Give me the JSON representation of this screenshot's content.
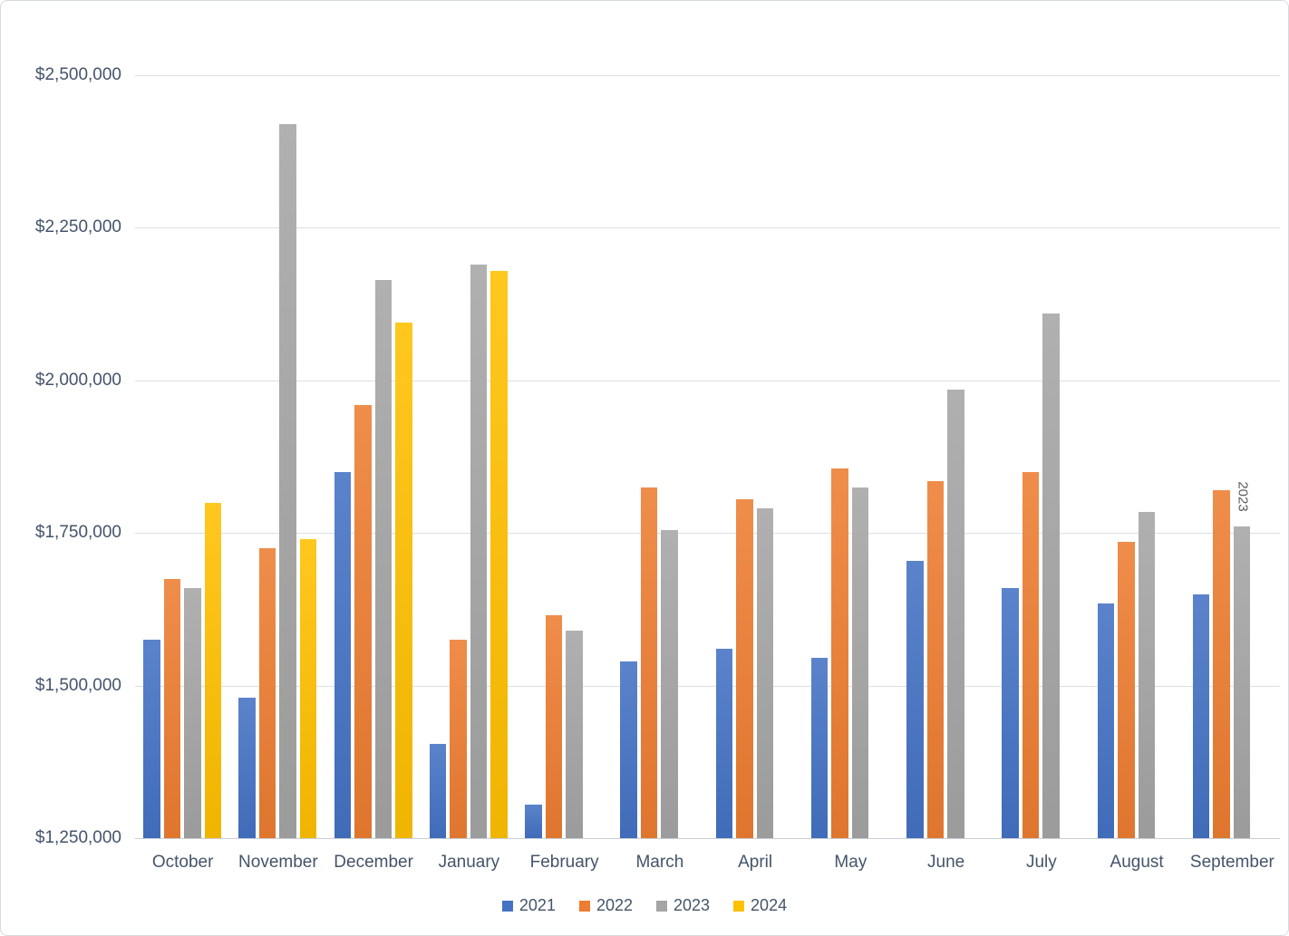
{
  "frame": {
    "background": "#FFFFFF",
    "border_color": "#D6DAE0"
  },
  "axis": {
    "text_color": "#44546A",
    "gridline_color": "#DCDFE3",
    "y_ticks": [
      "$2,500,000",
      "$2,250,000",
      "$2,000,000",
      "$1,750,000",
      "$1,500,000",
      "$1,250,000"
    ],
    "x_labels": [
      "October",
      "November",
      "December",
      "January",
      "February",
      "March",
      "April",
      "May",
      "June",
      "July",
      "August",
      "September"
    ]
  },
  "legend": {
    "items": [
      {
        "label": "2021",
        "color": "#4472C4"
      },
      {
        "label": "2022",
        "color": "#ED7D31"
      },
      {
        "label": "2023",
        "color": "#A5A5A5"
      },
      {
        "label": "2024",
        "color": "#FFC000"
      }
    ],
    "position": "bottom"
  },
  "annotation": {
    "text": "2023",
    "attached_to": "September 2023 bar",
    "rotation_deg": 90
  },
  "chart_data": {
    "type": "bar",
    "title": "",
    "xlabel": "",
    "ylabel": "",
    "categories": [
      "October",
      "November",
      "December",
      "January",
      "February",
      "March",
      "April",
      "May",
      "June",
      "July",
      "August",
      "September"
    ],
    "series": [
      {
        "name": "2021",
        "color": "#4472C4",
        "values": [
          1575000,
          1480000,
          1850000,
          1405000,
          1305000,
          1540000,
          1560000,
          1545000,
          1705000,
          1660000,
          1635000,
          1650000
        ]
      },
      {
        "name": "2022",
        "color": "#ED7D31",
        "values": [
          1675000,
          1725000,
          1960000,
          1575000,
          1615000,
          1825000,
          1805000,
          1855000,
          1835000,
          1850000,
          1735000,
          1820000
        ]
      },
      {
        "name": "2023",
        "color": "#A5A5A5",
        "values": [
          1660000,
          2420000,
          2165000,
          2190000,
          1590000,
          1755000,
          1790000,
          1825000,
          1985000,
          2110000,
          1785000,
          1760000
        ]
      },
      {
        "name": "2024",
        "color": "#FFC000",
        "values": [
          1800000,
          1740000,
          2095000,
          2180000,
          null,
          null,
          null,
          null,
          null,
          null,
          null,
          null
        ]
      }
    ],
    "y_min": 1250000,
    "y_max": 2500000,
    "y_step": 250000,
    "y_tick_format": "$#,##0",
    "grid": true,
    "legend_position": "bottom",
    "annotations": [
      {
        "text": "2023",
        "category": "September",
        "series": "2023",
        "rotation_deg": 90
      }
    ]
  }
}
